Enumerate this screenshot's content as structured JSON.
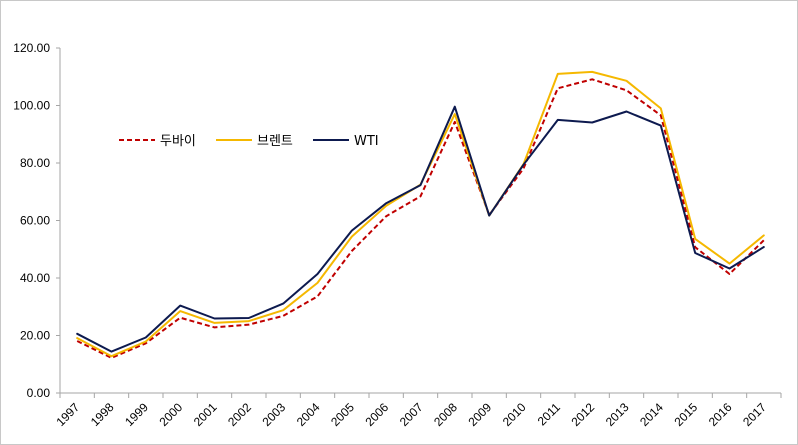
{
  "chart_data": {
    "type": "line",
    "title": "",
    "xlabel": "",
    "ylabel": "",
    "ylim": [
      0,
      120
    ],
    "y_ticks": [
      "0.00",
      "20.00",
      "40.00",
      "60.00",
      "80.00",
      "100.00",
      "120.00"
    ],
    "categories": [
      "1997",
      "1998",
      "1999",
      "2000",
      "2001",
      "2002",
      "2003",
      "2004",
      "2005",
      "2006",
      "2007",
      "2008",
      "2009",
      "2010",
      "2011",
      "2012",
      "2013",
      "2014",
      "2015",
      "2016",
      "2017"
    ],
    "legend_position": "left-center",
    "series": [
      {
        "name": "두바이",
        "color": "#c00000",
        "dash": "dashed",
        "values": [
          18.1,
          12.2,
          17.3,
          26.2,
          22.8,
          23.8,
          26.8,
          33.6,
          49.4,
          61.5,
          68.4,
          94.3,
          61.9,
          78.1,
          106.0,
          109.1,
          105.3,
          96.6,
          50.7,
          41.4,
          53.1
        ]
      },
      {
        "name": "브렌트",
        "color": "#f5b800",
        "dash": "solid",
        "values": [
          19.1,
          12.8,
          17.9,
          28.5,
          24.4,
          25.0,
          28.8,
          38.3,
          54.4,
          65.1,
          72.5,
          97.0,
          61.7,
          79.6,
          111.0,
          111.7,
          108.6,
          99.0,
          53.6,
          45.0,
          54.8
        ]
      },
      {
        "name": "WTI",
        "color": "#0d1a4f",
        "dash": "solid",
        "values": [
          20.6,
          14.4,
          19.3,
          30.4,
          25.9,
          26.1,
          31.1,
          41.4,
          56.5,
          66.0,
          72.3,
          99.6,
          61.7,
          79.4,
          95.0,
          94.1,
          97.9,
          93.0,
          48.7,
          43.3,
          50.8
        ]
      }
    ]
  }
}
